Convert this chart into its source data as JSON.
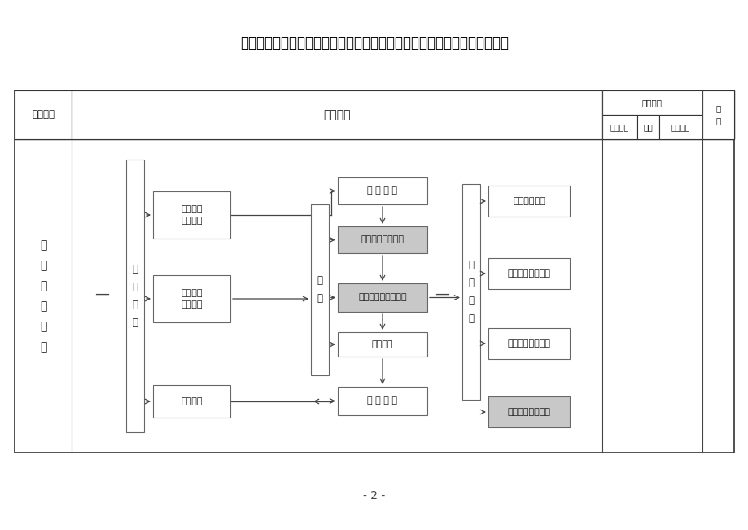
{
  "title": "四川省交通运输厅公路局医院内控体系基本框架工作流程及法规制度汇总表",
  "header_col1": "职权名称",
  "header_col2": "工作流程",
  "header_col3": "保障制度",
  "header_sub1": "文件名称",
  "header_sub2": "文号",
  "header_sub3": "发文单位",
  "header_col4": "备\n注",
  "left_label": "党\n委\n会\n议\n制\n度",
  "stage1_label": "会\n前\n准\n备",
  "stage2_label": "开\n会",
  "stage3_label": "会\n后\n工\n作",
  "dash1": "—",
  "dash2": "—",
  "boxes_left": [
    "沟通情况\n研究议题",
    "开展谈心\n征求意见",
    "提前通知"
  ],
  "boxes_mid": [
    "宣 布 议 题",
    "组织学习统一思想",
    "开展批评与自我批评",
    "重点剖析",
    "做 好 记 录"
  ],
  "boxes_right": [
    "制定整改措施",
    "做好思想政治工作",
    "向上级党组织汇报",
    "定期检查落实情况"
  ],
  "page_num": "- 2 -",
  "bg_color": "#ffffff",
  "box_ec": "#666666",
  "line_color": "#444444",
  "text_color": "#1a1a1a",
  "gray_box_fill": "#c8c8c8",
  "white_box_fill": "#ffffff",
  "outer_border": "#333333"
}
